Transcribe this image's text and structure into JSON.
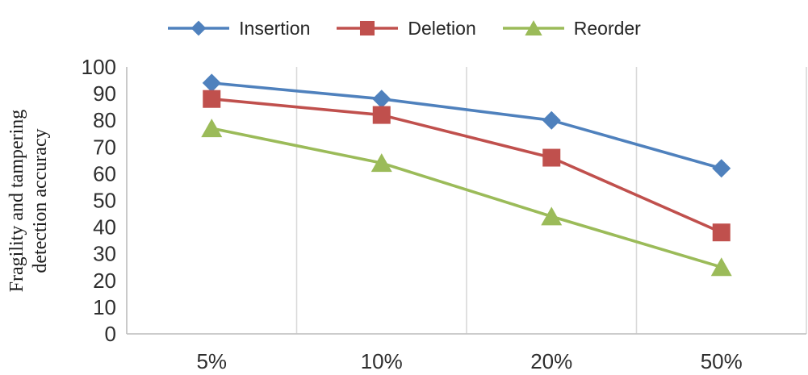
{
  "chart_data": {
    "type": "line",
    "title": "",
    "xlabel": "",
    "ylabel": "Fragility and tampering detection accuracy",
    "ylabel_lines": [
      "Fragility and tampering",
      "detection accuracy"
    ],
    "categories": [
      "5%",
      "10%",
      "20%",
      "50%"
    ],
    "series": [
      {
        "name": "Insertion",
        "marker": "diamond",
        "color": "#4F81BD",
        "values": [
          94,
          88,
          80,
          62
        ]
      },
      {
        "name": "Deletion",
        "marker": "square",
        "color": "#C0504D",
        "values": [
          88,
          82,
          66,
          38
        ]
      },
      {
        "name": "Reorder",
        "marker": "triangle",
        "color": "#9BBB59",
        "values": [
          77,
          64,
          44,
          25
        ]
      }
    ],
    "ylim": [
      0,
      100
    ],
    "ytick_step": 10,
    "yticks": [
      0,
      10,
      20,
      30,
      40,
      50,
      60,
      70,
      80,
      90,
      100
    ],
    "legend_position": "top",
    "grid": "vertical-category-boundaries",
    "colors": {
      "grid": "#d9d9d9",
      "axis": "#c4c4c4",
      "tick_text": "#2e2e2e",
      "legend_text": "#262626"
    }
  }
}
